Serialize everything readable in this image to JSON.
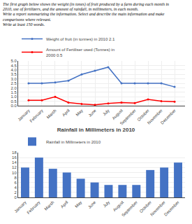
{
  "chart_data": [
    {
      "type": "line",
      "title": "The first graph below shows the weight (in tones) of fruit produced by a farm during each month in\n2010, use of fertilizers, and the amount of rainfall, in millimeters, in each month.\nWrite a report summarizing the information. Select and describe the main information and make\ncomparisons where relevant.\nWrite at least 150 words.",
      "categories": [
        "January",
        "February",
        "March",
        "April",
        "May",
        "June",
        "July",
        "August",
        "September",
        "October",
        "November",
        "December"
      ],
      "series": [
        {
          "name": "Weight of fruit (in tonnes) in 2010 2.1",
          "color": "#4472C4",
          "values": [
            2.5,
            2.5,
            2.6,
            2.8,
            3.5,
            3.9,
            4.3,
            2.5,
            2.5,
            2.5,
            2.5,
            2.1
          ]
        },
        {
          "name": "Amount of Fertiliser used (Tonnes) in\n2000 0.5",
          "color": "#FF0000",
          "values": [
            0.6,
            0.6,
            1.0,
            0.35,
            0.2,
            0.1,
            0.25,
            0.35,
            0.3,
            0.7,
            0.5,
            0.45
          ]
        }
      ],
      "marker": "circle",
      "ylim": [
        0,
        5
      ],
      "yticks": [
        {
          "value": 0,
          "label": "0.0"
        },
        0.5,
        {
          "value": 1,
          "label": "1.0"
        },
        1.5,
        {
          "value": 2,
          "label": "2.0"
        },
        2.5,
        {
          "value": 3,
          "label": "3.0"
        },
        3.5,
        {
          "value": 4,
          "label": "4.0"
        },
        4.5,
        {
          "value": 5,
          "label": "5.0"
        }
      ],
      "grid": true,
      "legend": "top"
    },
    {
      "type": "bar",
      "title": "Rainfall in Millimeters in 2010",
      "categories": [
        "January",
        "February",
        "March",
        "April",
        "May",
        "June",
        "July",
        "August",
        "September",
        "October",
        "November",
        "December"
      ],
      "series": [
        {
          "name": "Rainfall in Millimeters in 2010",
          "color": "#4472C4",
          "values": [
            12,
            16,
            11.5,
            10,
            7.5,
            6,
            5,
            5,
            5,
            11,
            12,
            14
          ]
        }
      ],
      "ylim": [
        0,
        18
      ],
      "yticks": [
        0,
        2,
        4,
        6,
        8,
        10,
        12,
        14,
        16,
        18
      ],
      "grid": true,
      "legend": "top"
    }
  ]
}
